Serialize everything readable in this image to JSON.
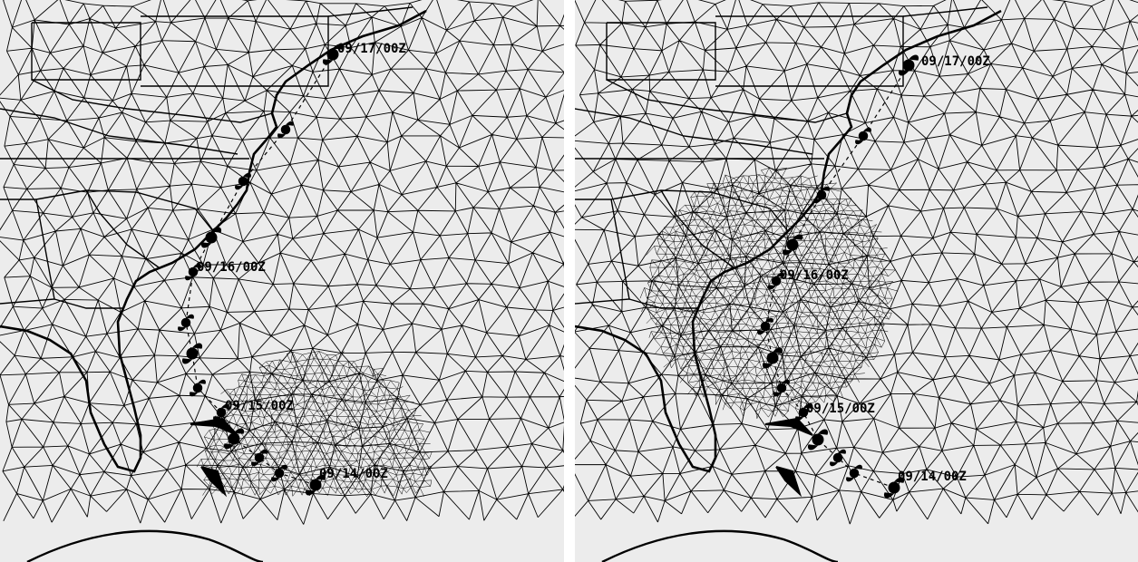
{
  "panels": [
    {
      "id": "left",
      "labels": [
        {
          "key": "p0",
          "text": "09/17/00Z"
        },
        {
          "key": "p1",
          "text": "09/16/00Z"
        },
        {
          "key": "p2",
          "text": "09/15/00Z"
        },
        {
          "key": "p3",
          "text": "09/14/00Z"
        }
      ]
    },
    {
      "id": "right",
      "labels": [
        {
          "key": "p0",
          "text": "09/17/00Z"
        },
        {
          "key": "p1",
          "text": "09/16/00Z"
        },
        {
          "key": "p2",
          "text": "09/15/00Z"
        },
        {
          "key": "p3",
          "text": "09/14/00Z"
        }
      ]
    }
  ],
  "colors": {
    "background": "#ececec",
    "mesh": "#000000",
    "coast": "#000000",
    "track": "#000000"
  },
  "icons": [
    "hurricane-symbol-icon"
  ]
}
